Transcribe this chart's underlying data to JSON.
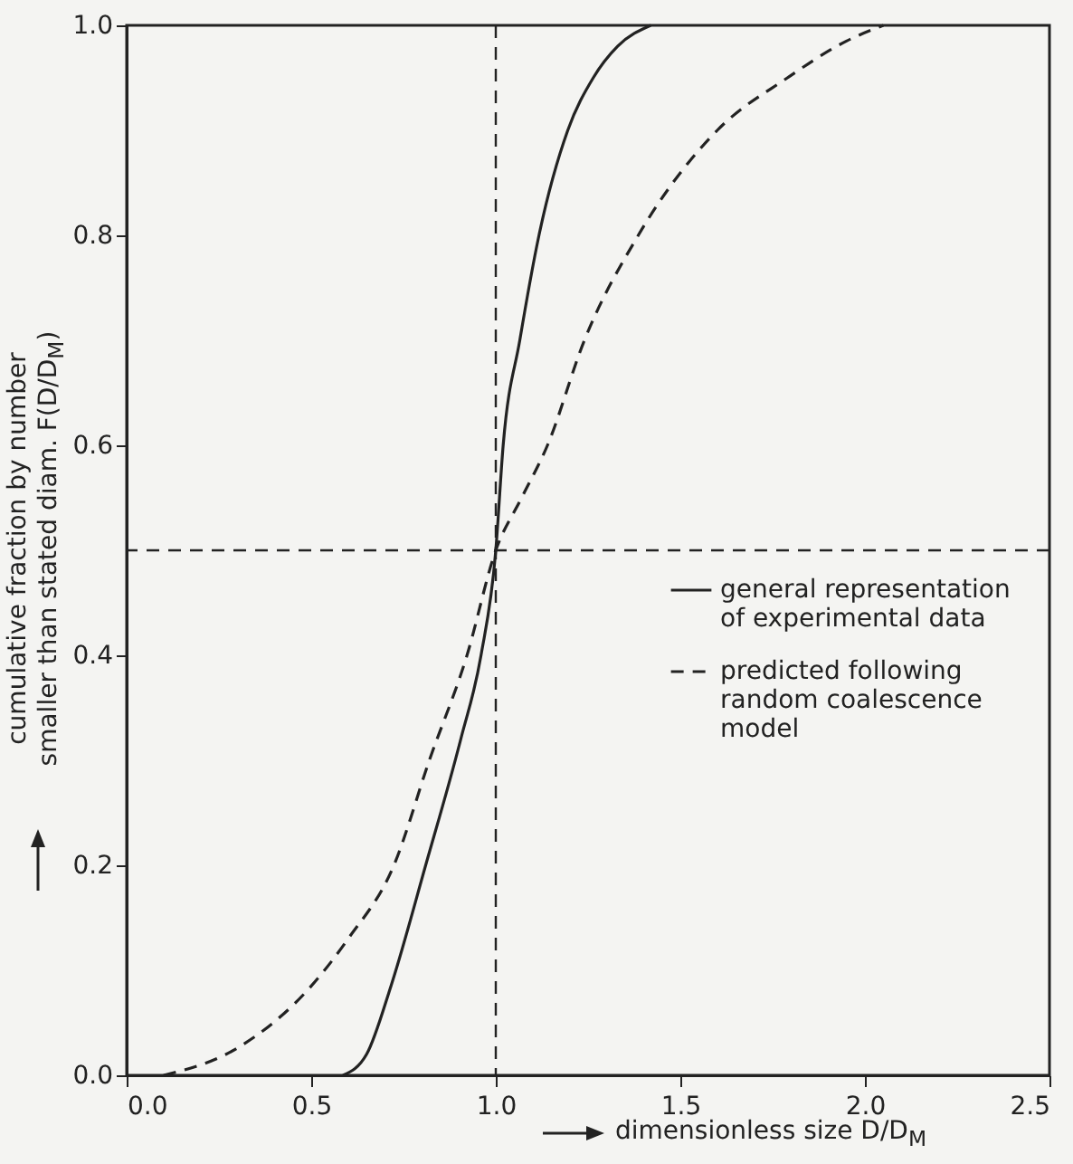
{
  "chart_data": {
    "type": "line",
    "xlabel": "dimensionless size D/D$_{M}$",
    "ylabel": "cumulative fraction by number smaller than stated diam. F(D/D$_{M}$)",
    "xlim": [
      0,
      2.5
    ],
    "ylim": [
      0,
      1
    ],
    "xticks": [
      {
        "value": 0,
        "label": "0.0"
      },
      {
        "value": 0.5,
        "label": "0.5"
      },
      {
        "value": 1,
        "label": "1.0"
      },
      {
        "value": 1.5,
        "label": "1.5"
      },
      {
        "value": 2,
        "label": "2.0"
      },
      {
        "value": 2.5,
        "label": "2.5"
      }
    ],
    "yticks": [
      {
        "value": 0,
        "label": "0.0"
      },
      {
        "value": 0.2,
        "label": "0.2"
      },
      {
        "value": 0.4,
        "label": "0.4"
      },
      {
        "value": 0.6,
        "label": "0.6"
      },
      {
        "value": 0.8,
        "label": "0.8"
      },
      {
        "value": 1,
        "label": "1.0"
      }
    ],
    "grid": false,
    "legend": "right",
    "marker": "none",
    "series": [
      {
        "name": "general representation of experimental data",
        "color": "#222222",
        "line_style": "solid",
        "x": [
          0.586,
          0.65,
          0.716,
          0.81,
          0.905,
          0.96,
          1.0,
          1.02,
          1.065,
          1.117,
          1.195,
          1.264,
          1.33,
          1.42
        ],
        "values": [
          0,
          0.02,
          0.085,
          0.2,
          0.32,
          0.4,
          0.5,
          0.6,
          0.7,
          0.8,
          0.9,
          0.95,
          0.98,
          1.0
        ]
      },
      {
        "name": "predicted following random coalescence model",
        "color": "#222222",
        "line_style": "dashed",
        "x": [
          0.1,
          0.3,
          0.5,
          0.6,
          0.724,
          0.82,
          0.922,
          1.0,
          1.07,
          1.14,
          1.24,
          1.386,
          1.6,
          1.79,
          1.95,
          2.05
        ],
        "values": [
          0,
          0.026,
          0.085,
          0.13,
          0.2,
          0.3,
          0.4,
          0.5,
          0.55,
          0.6,
          0.7,
          0.8,
          0.9,
          0.95,
          0.985,
          1.0
        ]
      }
    ],
    "ref_lines": [
      {
        "axis": "x",
        "value": 1,
        "line_style": "dashed",
        "color": "#222222"
      },
      {
        "axis": "y",
        "value": 0.5,
        "line_style": "dashed",
        "color": "#222222"
      }
    ]
  }
}
